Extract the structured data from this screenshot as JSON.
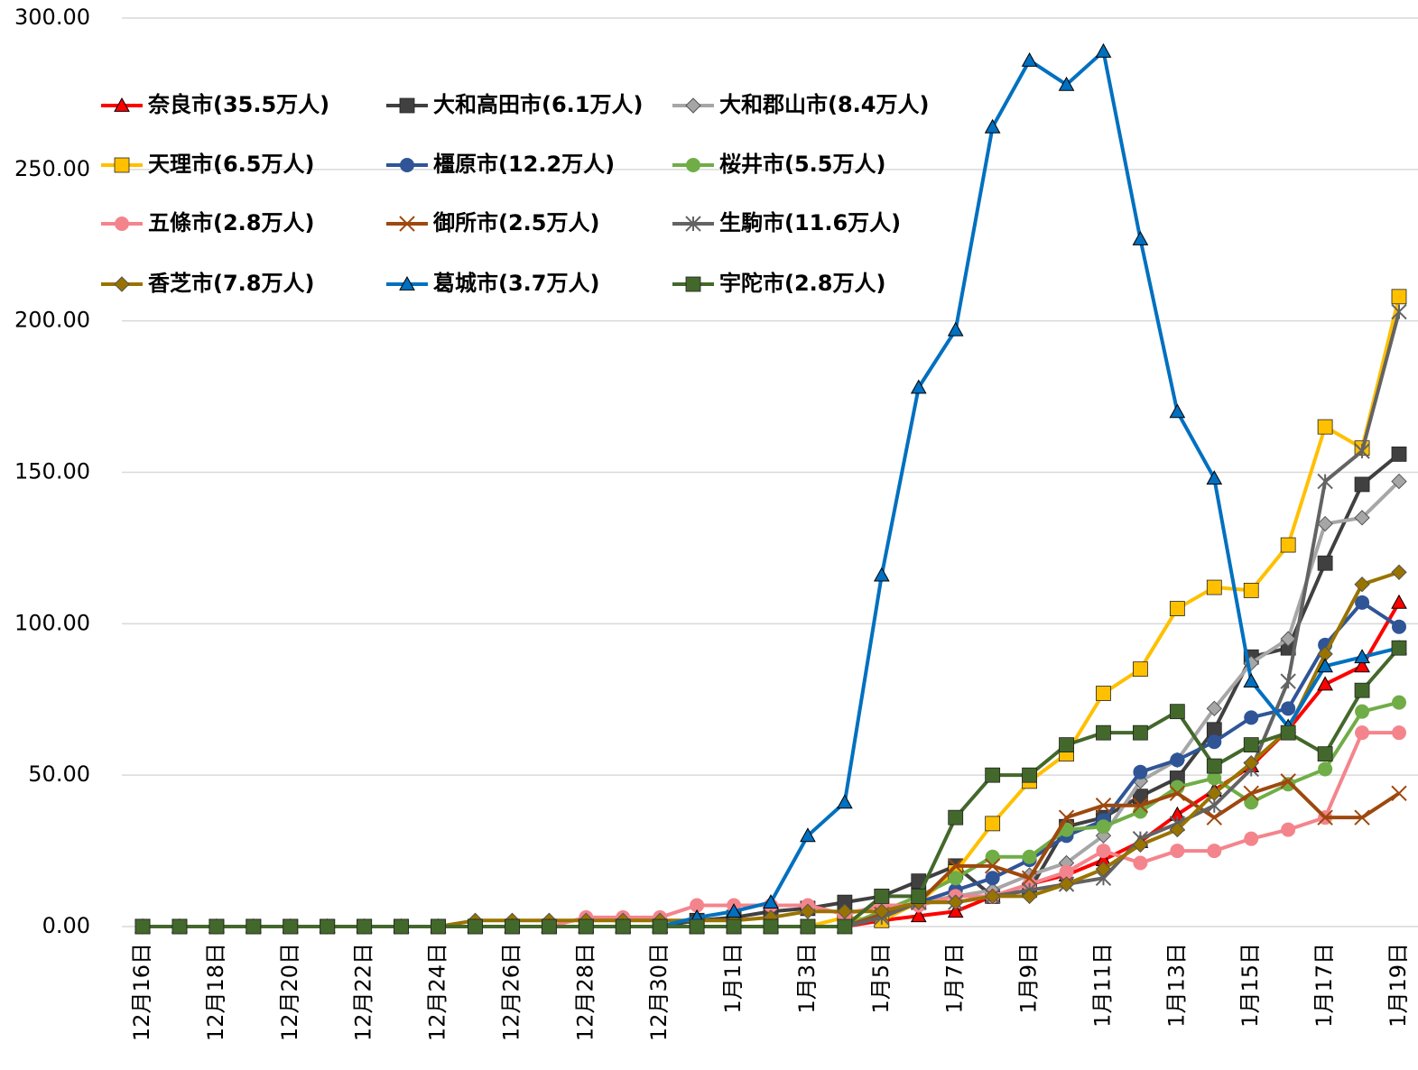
{
  "chart_data": {
    "type": "line",
    "categories": [
      "12月16日",
      null,
      "12月18日",
      null,
      "12月20日",
      null,
      "12月22日",
      null,
      "12月24日",
      null,
      "12月26日",
      null,
      "12月28日",
      null,
      "12月30日",
      null,
      "1月1日",
      null,
      "1月3日",
      null,
      "1月5日",
      null,
      "1月7日",
      null,
      "1月9日",
      null,
      "1月11日",
      null,
      "1月13日",
      null,
      "1月15日",
      null,
      "1月17日",
      null,
      "1月19日"
    ],
    "ylim": [
      0,
      300
    ],
    "yticks": [
      {
        "value": 0,
        "label": "0.00"
      },
      {
        "value": 50,
        "label": "50.00"
      },
      {
        "value": 100,
        "label": "100.00"
      },
      {
        "value": 150,
        "label": "150.00"
      },
      {
        "value": 200,
        "label": "200.00"
      },
      {
        "value": 250,
        "label": "250.00"
      },
      {
        "value": 300,
        "label": "300.00"
      }
    ],
    "grid": true,
    "legend": "top-left",
    "series": [
      {
        "name": "奈良市(35.5万人)",
        "color": "#ff0000",
        "marker": "triangle",
        "values": [
          0,
          0,
          0,
          0,
          0,
          0,
          0,
          0,
          0,
          0,
          0,
          0,
          0,
          0,
          0,
          0,
          0,
          0,
          0,
          0,
          2,
          3.5,
          5,
          10,
          14,
          17,
          22,
          28,
          37,
          45,
          53,
          65,
          80,
          86,
          107
        ]
      },
      {
        "name": "大和高田市(6.1万人)",
        "color": "#404040",
        "marker": "square",
        "values": [
          0,
          0,
          0,
          0,
          0,
          0,
          0,
          0,
          0,
          0,
          0,
          0,
          0,
          0,
          0,
          2,
          3,
          5,
          6,
          8,
          10,
          15,
          20,
          10,
          12,
          33,
          36,
          43,
          49,
          65,
          89,
          92,
          120,
          146,
          156
        ]
      },
      {
        "name": "大和郡山市(8.4万人)",
        "color": "#a6a6a6",
        "marker": "diamond",
        "values": [
          0,
          0,
          0,
          0,
          0,
          0,
          0,
          0,
          0,
          0,
          0,
          0,
          0,
          0,
          0,
          0,
          0,
          0,
          0,
          0,
          3,
          8,
          10,
          12,
          17,
          21,
          30,
          48,
          55,
          72,
          87,
          95,
          133,
          135,
          147
        ]
      },
      {
        "name": "天理市(6.5万人)",
        "color": "#ffc000",
        "marker": "square",
        "values": [
          0,
          0,
          0,
          0,
          0,
          0,
          0,
          0,
          0,
          0,
          0,
          0,
          0,
          0,
          0,
          0,
          0,
          0,
          0,
          3,
          2,
          8,
          18,
          34,
          48,
          57,
          77,
          85,
          105,
          112,
          111,
          126,
          165,
          158,
          208
        ]
      },
      {
        "name": "橿原市(12.2万人)",
        "color": "#2f5597",
        "marker": "circle",
        "values": [
          0,
          0,
          0,
          0,
          0,
          0,
          0,
          0,
          0,
          0,
          0,
          0,
          0,
          0,
          0,
          0,
          0,
          0,
          0,
          0,
          5,
          8,
          12,
          16,
          22,
          30,
          35,
          51,
          55,
          61,
          69,
          72,
          93,
          107,
          99
        ]
      },
      {
        "name": "桜井市(5.5万人)",
        "color": "#70ad47",
        "marker": "circle",
        "values": [
          0,
          0,
          0,
          0,
          0,
          0,
          0,
          0,
          0,
          0,
          0,
          0,
          0,
          0,
          0,
          0,
          0,
          0,
          0,
          0,
          5,
          10,
          16,
          23,
          23,
          32,
          33,
          38,
          46,
          49,
          41,
          47,
          52,
          71,
          74
        ]
      },
      {
        "name": "五條市(2.8万人)",
        "color": "#f4848c",
        "marker": "circle",
        "values": [
          0,
          0,
          0,
          0,
          0,
          0,
          0,
          0,
          0,
          0,
          0,
          0,
          3,
          3,
          3,
          7,
          7,
          7,
          7,
          4,
          7,
          7,
          10,
          10,
          14,
          18,
          25,
          21,
          25,
          25,
          29,
          32,
          36,
          64,
          64
        ]
      },
      {
        "name": "御所市(2.5万人)",
        "color": "#9e480e",
        "marker": "x",
        "values": [
          0,
          0,
          0,
          0,
          0,
          0,
          0,
          0,
          0,
          0,
          0,
          0,
          0,
          0,
          0,
          0,
          0,
          0,
          0,
          0,
          4,
          8,
          20,
          20,
          16,
          36,
          40,
          40,
          44,
          36,
          44,
          48,
          36,
          36,
          44
        ]
      },
      {
        "name": "生駒市(11.6万人)",
        "color": "#636363",
        "marker": "star",
        "values": [
          0,
          0,
          0,
          0,
          0,
          0,
          0,
          0,
          0,
          0,
          0,
          0,
          0,
          0,
          0,
          0,
          0,
          0,
          0,
          0,
          3,
          8,
          8,
          10,
          12,
          14,
          16,
          29,
          34,
          40,
          52,
          81,
          147,
          157,
          203
        ]
      },
      {
        "name": "香芝市(7.8万人)",
        "color": "#997300",
        "marker": "diamond",
        "values": [
          0,
          0,
          0,
          0,
          0,
          0,
          0,
          0,
          0,
          2,
          2,
          2,
          2,
          2,
          2,
          2,
          2,
          3,
          5,
          5,
          5,
          8,
          8,
          10,
          10,
          14,
          19,
          27,
          32,
          44,
          54,
          65,
          90,
          113,
          117
        ]
      },
      {
        "name": "葛城市(3.7万人)",
        "color": "#0070c0",
        "marker": "triangle",
        "values": [
          0,
          0,
          0,
          0,
          0,
          0,
          0,
          0,
          0,
          0,
          0,
          0,
          0,
          0,
          0,
          3,
          5,
          8,
          30,
          41,
          116,
          178,
          197,
          264,
          286,
          278,
          289,
          227,
          170,
          148,
          81,
          66,
          86,
          89,
          92
        ]
      },
      {
        "name": "宇陀市(2.8万人)",
        "color": "#43682b",
        "marker": "square",
        "values": [
          0,
          0,
          0,
          0,
          0,
          0,
          0,
          0,
          0,
          0,
          0,
          0,
          0,
          0,
          0,
          0,
          0,
          0,
          0,
          0,
          10,
          10,
          36,
          50,
          50,
          60,
          64,
          64,
          71,
          53,
          60,
          64,
          57,
          78,
          92
        ]
      }
    ]
  }
}
